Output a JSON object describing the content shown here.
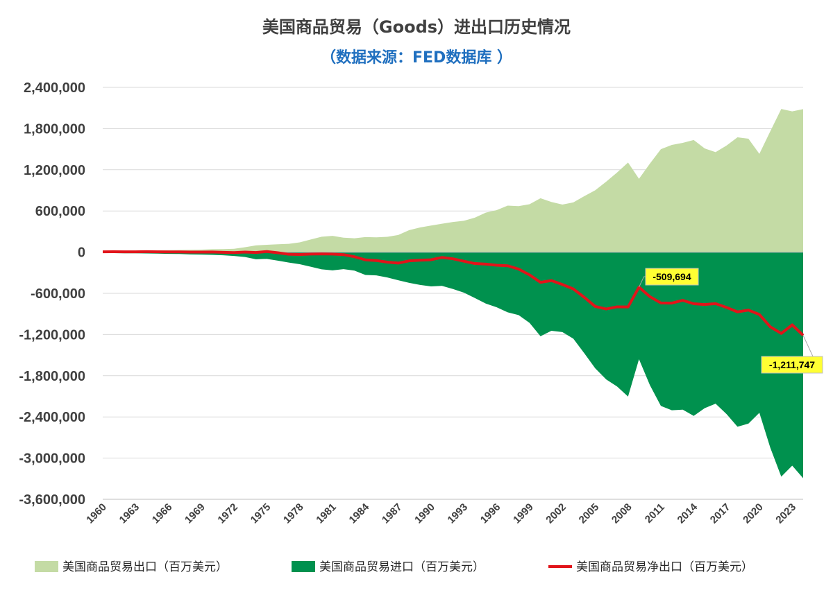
{
  "chart_data": {
    "type": "area",
    "title": "美国商品贸易（Goods）进出口历史情况",
    "subtitle": "（数据来源：FED数据库 ）",
    "x": [
      1960,
      1961,
      1962,
      1963,
      1964,
      1965,
      1966,
      1967,
      1968,
      1969,
      1970,
      1971,
      1972,
      1973,
      1974,
      1975,
      1976,
      1977,
      1978,
      1979,
      1980,
      1981,
      1982,
      1983,
      1984,
      1985,
      1986,
      1987,
      1988,
      1989,
      1990,
      1991,
      1992,
      1993,
      1994,
      1995,
      1996,
      1997,
      1998,
      1999,
      2000,
      2001,
      2002,
      2003,
      2004,
      2005,
      2006,
      2007,
      2008,
      2009,
      2010,
      2011,
      2012,
      2013,
      2014,
      2015,
      2016,
      2017,
      2018,
      2019,
      2020,
      2021,
      2022,
      2023,
      2024
    ],
    "x_tick_labels": [
      "1960",
      "1963",
      "1966",
      "1969",
      "1972",
      "1975",
      "1978",
      "1981",
      "1984",
      "1987",
      "1990",
      "1993",
      "1996",
      "1999",
      "2002",
      "2005",
      "2008",
      "2011",
      "2014",
      "2017",
      "2020",
      "2023"
    ],
    "ylim": [
      -3600000,
      2400000
    ],
    "y_ticks": [
      2400000,
      1800000,
      1200000,
      600000,
      0,
      -600000,
      -1200000,
      -1800000,
      -2400000,
      -3000000,
      -3600000
    ],
    "y_tick_labels": [
      "2,400,000",
      "1,800,000",
      "1,200,000",
      "600,000",
      "0",
      "-600,000",
      "-1,200,000",
      "-1,800,000",
      "-2,400,000",
      "-3,000,000",
      "-3,600,000"
    ],
    "grid": true,
    "legend_position": "bottom",
    "series": [
      {
        "name": "美国商品贸易出口（百万美元）",
        "type": "area",
        "color": "#c4dba5",
        "values": [
          19650,
          20108,
          20781,
          22272,
          25501,
          26461,
          29310,
          30666,
          33626,
          36414,
          42469,
          43319,
          49381,
          71410,
          98306,
          107088,
          114745,
          120816,
          142075,
          184439,
          224250,
          237044,
          211157,
          201799,
          219926,
          215915,
          223344,
          250208,
          320230,
          359916,
          387401,
          414083,
          439631,
          456943,
          502859,
          575204,
          612113,
          678366,
          670416,
          698524,
          784940,
          731332,
          693257,
          724771,
          814875,
          901082,
          1025967,
          1160366,
          1304896,
          1068499,
          1290273,
          1499240,
          1561689,
          1592003,
          1633987,
          1510757,
          1456950,
          1553383,
          1672331,
          1653143,
          1431406,
          1761692,
          2086055,
          2050300,
          2082577
        ]
      },
      {
        "name": "美国商品贸易进口（百万美元）",
        "type": "area",
        "color": "#00914e",
        "values": [
          -14758,
          -14537,
          -16260,
          -17048,
          -18700,
          -21510,
          -25493,
          -26866,
          -32991,
          -35807,
          -39866,
          -45579,
          -55797,
          -70499,
          -103811,
          -98185,
          -124228,
          -151907,
          -176002,
          -212007,
          -249750,
          -265067,
          -247642,
          -268901,
          -332418,
          -338088,
          -368425,
          -409765,
          -447189,
          -477665,
          -498438,
          -491020,
          -536528,
          -589394,
          -668690,
          -749374,
          -803113,
          -876794,
          -917103,
          -1029980,
          -1224408,
          -1145900,
          -1164720,
          -1260717,
          -1472926,
          -1692416,
          -1853938,
          -1957031,
          -2103641,
          -1559625,
          -1938950,
          -2239886,
          -2303785,
          -2294247,
          -2385480,
          -2273249,
          -2207195,
          -2358761,
          -2542750,
          -2497522,
          -2339893,
          -2850000,
          -3270000,
          -3110000,
          -3293000
        ]
      },
      {
        "name": "美国商品贸易净出口（百万美元）",
        "type": "line",
        "color": "#e1141a",
        "values": [
          4892,
          5571,
          4521,
          5224,
          6801,
          4951,
          3817,
          3800,
          635,
          607,
          2603,
          -2260,
          -6416,
          911,
          -5505,
          8903,
          -9483,
          -31091,
          -33927,
          -27568,
          -25500,
          -28023,
          -36485,
          -67102,
          -112492,
          -122173,
          -145081,
          -159557,
          -126959,
          -117749,
          -111037,
          -76937,
          -96897,
          -132451,
          -165831,
          -174170,
          -191000,
          -198428,
          -246687,
          -331456,
          -439468,
          -414568,
          -471463,
          -535946,
          -658051,
          -791334,
          -827971,
          -796665,
          -798745,
          -509694,
          -648677,
          -740646,
          -742096,
          -702244,
          -751493,
          -762492,
          -750245,
          -805378,
          -870419,
          -844379,
          -908487,
          -1088308,
          -1183969,
          -1059700,
          -1211747
        ]
      }
    ],
    "annotations": [
      {
        "x": 2009,
        "value": -509694,
        "label": "-509,694"
      },
      {
        "x": 2024,
        "value": -1211747,
        "label": "-1,211,747"
      }
    ]
  }
}
